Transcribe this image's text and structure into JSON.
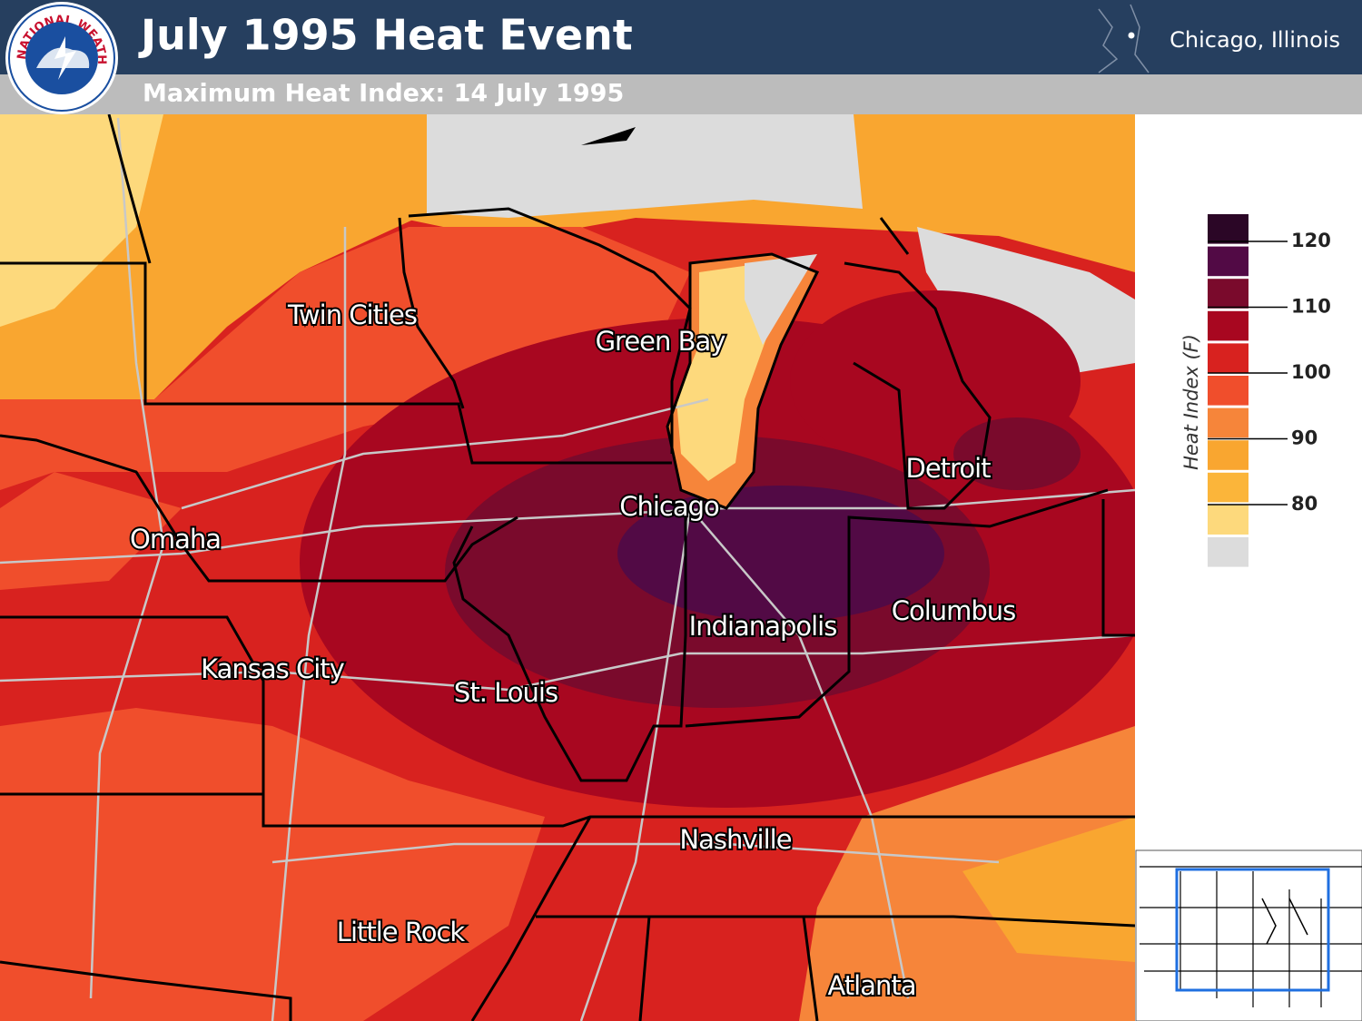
{
  "header": {
    "title": "July 1995 Heat Event",
    "subtitle": "Maximum Heat Index: 14 July 1995",
    "location": "Chicago, Illinois",
    "logo_text": "NATIONAL WEATHER SERVICE"
  },
  "map": {
    "cities": [
      {
        "label": "Twin Cities"
      },
      {
        "label": "Green Bay"
      },
      {
        "label": "Detroit"
      },
      {
        "label": "Chicago"
      },
      {
        "label": "Omaha"
      },
      {
        "label": "Columbus"
      },
      {
        "label": "Indianapolis"
      },
      {
        "label": "Kansas City"
      },
      {
        "label": "St. Louis"
      },
      {
        "label": "Nashville"
      },
      {
        "label": "Little Rock"
      },
      {
        "label": "Atlanta"
      }
    ]
  },
  "legend": {
    "title": "Heat Index (F)",
    "ticks": [
      120,
      110,
      100,
      90,
      80
    ],
    "colors": [
      "#2b0626",
      "#520a45",
      "#7a0a2c",
      "#a80720",
      "#d8221f",
      "#f04e2c",
      "#f6853a",
      "#f9a630",
      "#fbb53a",
      "#fdd97c",
      "#dcdcdc"
    ]
  }
}
